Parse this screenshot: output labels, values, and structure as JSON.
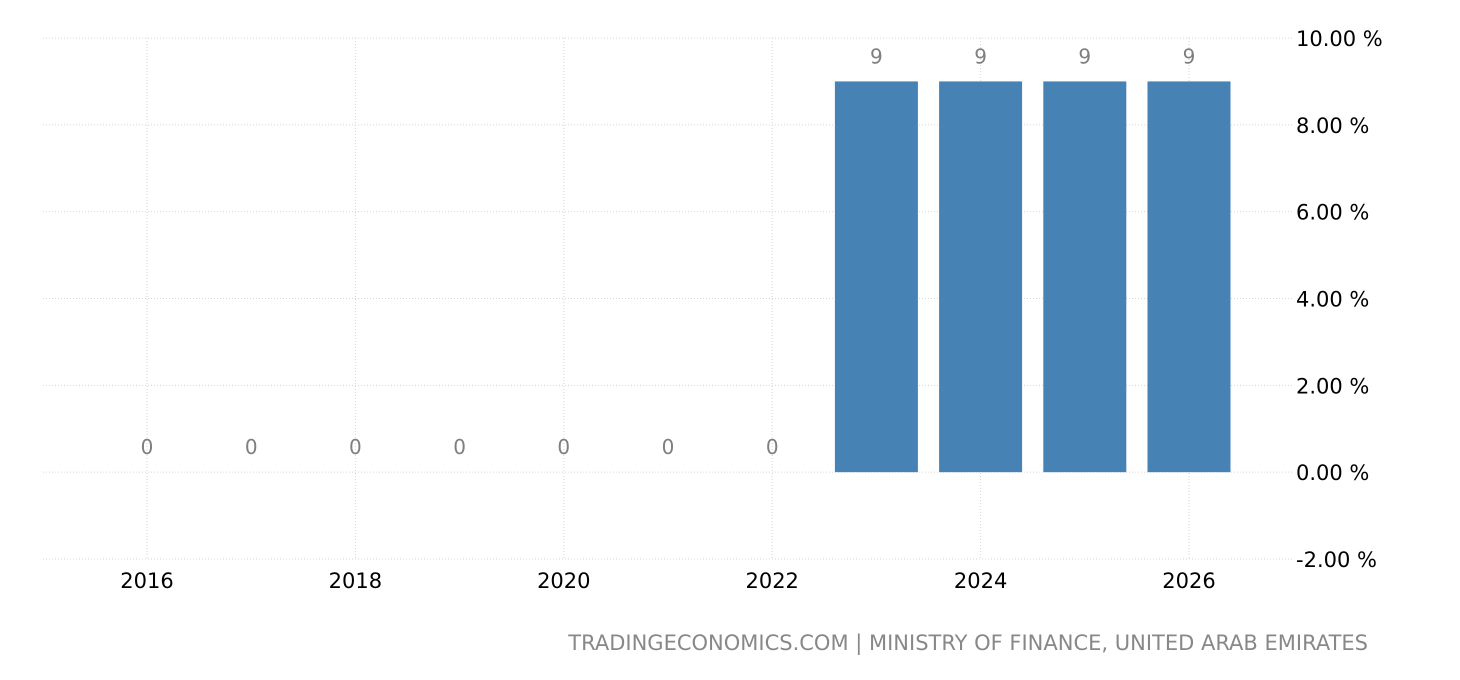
{
  "chart_data": {
    "type": "bar",
    "categories": [
      "2016",
      "2017",
      "2018",
      "2019",
      "2020",
      "2021",
      "2022",
      "2023",
      "2024",
      "2025",
      "2026"
    ],
    "values": [
      0,
      0,
      0,
      0,
      0,
      0,
      0,
      9,
      9,
      9,
      9
    ],
    "data_labels": [
      "0",
      "0",
      "0",
      "0",
      "0",
      "0",
      "0",
      "9",
      "9",
      "9",
      "9"
    ],
    "x_tick_labels": [
      "2016",
      "2018",
      "2020",
      "2022",
      "2024",
      "2026"
    ],
    "y_tick_labels": [
      "10.00 %",
      "8.00 %",
      "6.00 %",
      "4.00 %",
      "2.00 %",
      "0.00 %",
      "-2.00 %"
    ],
    "y_ticks": [
      10,
      8,
      6,
      4,
      2,
      0,
      -2
    ],
    "ylim": [
      -2,
      10
    ],
    "y_axis_side": "right",
    "grid": true,
    "bar_color": "#4682b4",
    "source": "TRADINGECONOMICS.COM | MINISTRY OF FINANCE, UNITED ARAB EMIRATES"
  }
}
